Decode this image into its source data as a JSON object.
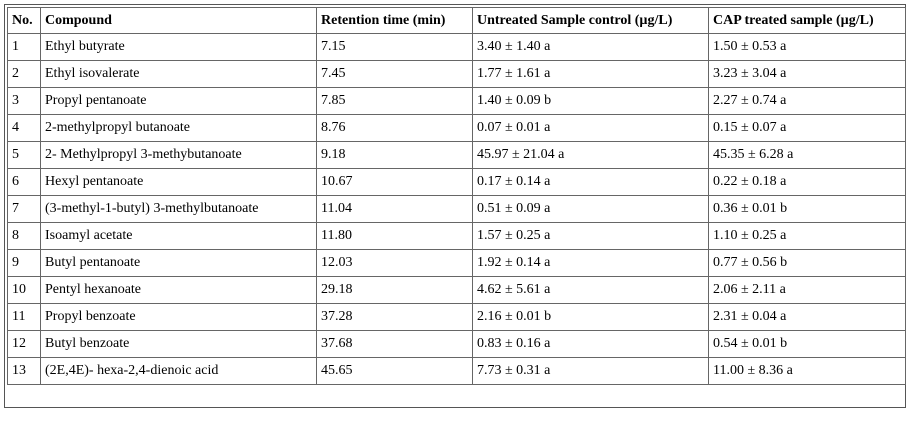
{
  "table": {
    "header": [
      "No.",
      "Compound",
      "Retention time (min)",
      "Untreated Sample control (µg/L)",
      "CAP treated sample (µg/L)"
    ],
    "rows": [
      [
        "1",
        "Ethyl butyrate",
        "7.15",
        "3.40 ± 1.40 a",
        "1.50 ± 0.53 a"
      ],
      [
        "2",
        "Ethyl isovalerate",
        "7.45",
        "1.77 ± 1.61 a",
        "3.23 ± 3.04 a"
      ],
      [
        "3",
        "Propyl pentanoate",
        "7.85",
        "1.40 ± 0.09 b",
        "2.27 ± 0.74 a"
      ],
      [
        "4",
        "2-methylpropyl butanoate",
        "8.76",
        "0.07 ± 0.01 a",
        "0.15 ± 0.07 a"
      ],
      [
        "5",
        "2- Methylpropyl 3-methybutanoate",
        "9.18",
        "45.97 ± 21.04 a",
        "45.35 ± 6.28 a"
      ],
      [
        "6",
        "Hexyl pentanoate",
        "10.67",
        "0.17 ± 0.14 a",
        "0.22 ± 0.18 a"
      ],
      [
        "7",
        "(3-methyl-1-butyl) 3-methylbutanoate",
        "11.04",
        "0.51 ± 0.09 a",
        "0.36 ± 0.01 b"
      ],
      [
        "8",
        "Isoamyl acetate",
        "11.80",
        "1.57 ± 0.25 a",
        "1.10 ± 0.25 a"
      ],
      [
        "9",
        "Butyl pentanoate",
        "12.03",
        "1.92 ± 0.14 a",
        "0.77 ± 0.56 b"
      ],
      [
        "10",
        "Pentyl hexanoate",
        "29.18",
        "4.62 ± 5.61 a",
        "2.06 ± 2.11 a"
      ],
      [
        "11",
        "Propyl benzoate",
        "37.28",
        "2.16 ± 0.01 b",
        "2.31 ± 0.04 a"
      ],
      [
        "12",
        "Butyl benzoate",
        "37.68",
        "0.83 ± 0.16 a",
        "0.54 ± 0.01 b"
      ],
      [
        "13",
        "(2E,4E)- hexa-2,4-dienoic acid",
        "45.65",
        "7.73 ± 0.31 a",
        "11.00 ± 8.36 a"
      ]
    ]
  }
}
